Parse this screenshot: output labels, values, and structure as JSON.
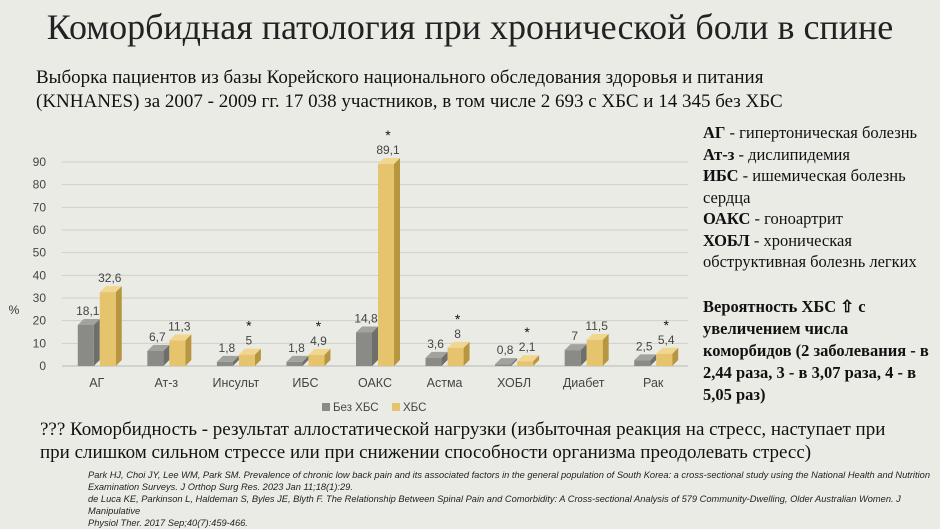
{
  "title": "Коморбидная патология при хронической боли в спине",
  "subtitle": [
    "Выборка пациентов из базы Корейского национального обследования здоровья и питания",
    "(KNHANES) за 2007 - 2009 гг. 17 038 участников, в том числе 2 693 с ХБС и 14 345 без ХБС"
  ],
  "colors": {
    "no_cbs": "#8a8a86",
    "cbs": "#e6c46e"
  },
  "chart_data": {
    "type": "bar",
    "title": "",
    "ylabel": "%",
    "xlabel": "",
    "ylim": [
      0,
      90
    ],
    "yticks": [
      "0",
      "10",
      "20",
      "30",
      "40",
      "50",
      "60",
      "70",
      "80",
      "90"
    ],
    "grid": true,
    "legend_position": "bottom",
    "categories": [
      "АГ",
      "Ат-з",
      "Инсульт",
      "ИБС",
      "ОАКС",
      "Астма",
      "ХОБЛ",
      "Диабет",
      "Рак"
    ],
    "series": [
      {
        "name": "Без ХБС",
        "values": [
          18.1,
          6.7,
          1.8,
          1.8,
          14.8,
          3.6,
          0.8,
          7,
          2.5
        ],
        "labels": [
          "18,1",
          "6,7",
          "1,8",
          "1,8",
          "14,8",
          "3,6",
          "0,8",
          "7",
          "2,5"
        ]
      },
      {
        "name": "ХБС",
        "values": [
          32.6,
          11.3,
          5,
          4.9,
          89.1,
          8,
          2.1,
          11.5,
          5.4
        ],
        "labels": [
          "32,6",
          "11,3",
          "5",
          "4,9",
          "89,1",
          "8",
          "2,1",
          "11,5",
          "5,4"
        ]
      }
    ],
    "significance": [
      "",
      "",
      "*",
      "*",
      "*",
      "*",
      "*",
      "",
      "*"
    ]
  },
  "abbreviations": [
    {
      "term": "АГ",
      "text": " - гипертоническая болезнь"
    },
    {
      "term": "Ат-з",
      "text": " - дислипидемия"
    },
    {
      "term": "ИБС",
      "text": " - ишемическая болезнь сердца"
    },
    {
      "term": "ОАКС",
      "text": " - гоноартрит"
    },
    {
      "term": "ХОБЛ",
      "text": " - хроническая обструктивная болезнь легких"
    }
  ],
  "probability_note": "Вероятность ХБС ⇧ с увеличением числа коморбидов (2 заболевания - в 2,44 раза, 3 - в 3,07 раза, 4 - в 5,05 раз)",
  "bottom_note": [
    "??? Коморбидность - результат аллостатической нагрузки (избыточная реакция на стресс, наступает при",
    "при слишком сильном стрессе или при снижении способности организма преодолевать стресс)"
  ],
  "references": [
    "Park HJ, Choi JY, Lee WM, Park SM. Prevalence of chronic low back pain and its associated factors in the general population of South Korea: a cross-sectional study using the National Health and Nutrition",
    "Examination Surveys. J Orthop Surg Res. 2023 Jan 11;18(1):29.",
    "de Luca KE, Parkinson L, Haldeman S, Byles JE, Blyth F. The Relationship Between Spinal Pain and Comorbidity: A Cross-sectional Analysis of 579 Community-Dwelling, Older Australian Women. J Manipulative",
    "Physiol Ther. 2017 Sep;40(7):459-466."
  ]
}
